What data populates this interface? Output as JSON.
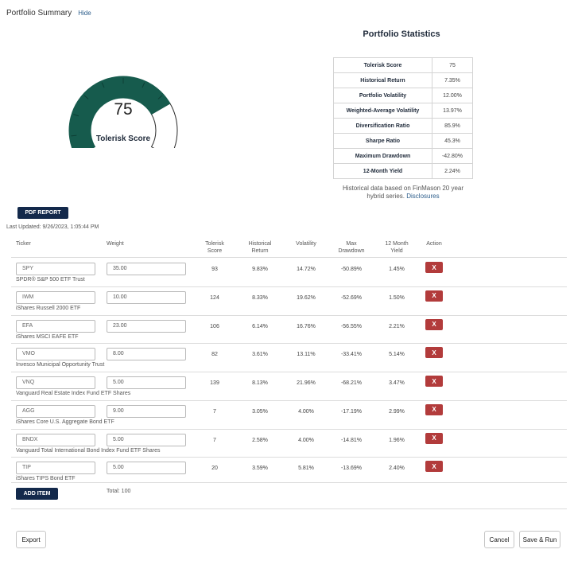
{
  "header": {
    "title": "Portfolio Summary",
    "hide_link": "Hide"
  },
  "gauge": {
    "score": "75",
    "label": "Tolerisk Score",
    "fill_fraction": 0.75,
    "fill_color": "#165b4d"
  },
  "stats": {
    "title": "Portfolio Statistics",
    "rows": [
      {
        "label": "Tolerisk Score",
        "value": "75"
      },
      {
        "label": "Historical Return",
        "value": "7.35%"
      },
      {
        "label": "Portfolio Volatility",
        "value": "12.00%"
      },
      {
        "label": "Weighted-Average Volatility",
        "value": "13.97%"
      },
      {
        "label": "Diversification Ratio",
        "value": "85.9%"
      },
      {
        "label": "Sharpe Ratio",
        "value": "45.3%"
      },
      {
        "label": "Maximum Drawdown",
        "value": "-42.80%"
      },
      {
        "label": "12-Month Yield",
        "value": "2.24%"
      }
    ],
    "note": "Historical data based on FinMason 20 year hybrid series.",
    "disclosures_link": "Disclosures"
  },
  "pdf_report_label": "PDF REPORT",
  "last_updated": "Last Updated: 9/26/2023, 1:05:44 PM",
  "table": {
    "headers": {
      "ticker": "Ticker",
      "weight": "Weight",
      "score_1": "Tolerisk",
      "score_2": "Score",
      "return_1": "Historical",
      "return_2": "Return",
      "volatility": "Volatility",
      "drawdown_1": "Max",
      "drawdown_2": "Drawdown",
      "yield_1": "12 Month",
      "yield_2": "Yield",
      "action": "Action"
    },
    "rows": [
      {
        "ticker": "SPY",
        "weight": "35.00",
        "name": "SPDR® S&P 500 ETF Trust",
        "score": "93",
        "return": "9.83%",
        "volatility": "14.72%",
        "drawdown": "-50.89%",
        "yield": "1.45%"
      },
      {
        "ticker": "IWM",
        "weight": "10.00",
        "name": "iShares Russell 2000 ETF",
        "score": "124",
        "return": "8.33%",
        "volatility": "19.62%",
        "drawdown": "-52.69%",
        "yield": "1.50%"
      },
      {
        "ticker": "EFA",
        "weight": "23.00",
        "name": "iShares MSCI EAFE ETF",
        "score": "106",
        "return": "6.14%",
        "volatility": "16.76%",
        "drawdown": "-56.55%",
        "yield": "2.21%"
      },
      {
        "ticker": "VMO",
        "weight": "8.00",
        "name": "Invesco Municipal Opportunity Trust",
        "score": "82",
        "return": "3.61%",
        "volatility": "13.11%",
        "drawdown": "-33.41%",
        "yield": "5.14%"
      },
      {
        "ticker": "VNQ",
        "weight": "5.00",
        "name": "Vanguard Real Estate Index Fund ETF Shares",
        "score": "139",
        "return": "8.13%",
        "volatility": "21.96%",
        "drawdown": "-68.21%",
        "yield": "3.47%"
      },
      {
        "ticker": "AGG",
        "weight": "9.00",
        "name": "iShares Core U.S. Aggregate Bond ETF",
        "score": "7",
        "return": "3.05%",
        "volatility": "4.00%",
        "drawdown": "-17.19%",
        "yield": "2.99%"
      },
      {
        "ticker": "BNDX",
        "weight": "5.00",
        "name": "Vanguard Total International Bond Index Fund ETF Shares",
        "score": "7",
        "return": "2.58%",
        "volatility": "4.00%",
        "drawdown": "-14.81%",
        "yield": "1.96%"
      },
      {
        "ticker": "TIP",
        "weight": "5.00",
        "name": "iShares TIPS Bond ETF",
        "score": "20",
        "return": "3.59%",
        "volatility": "5.81%",
        "drawdown": "-13.69%",
        "yield": "2.40%"
      }
    ],
    "remove_label": "X"
  },
  "add_item_label": "ADD ITEM",
  "total_label": "Total: 100",
  "footer": {
    "export": "Export",
    "cancel": "Cancel",
    "save_run": "Save & Run"
  }
}
